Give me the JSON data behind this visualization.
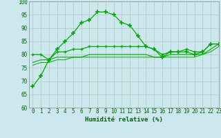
{
  "xlabel": "Humidité relative (%)",
  "background_color": "#cce8ee",
  "grid_color": "#aaccbb",
  "line_color": "#00aa00",
  "x_values": [
    0,
    1,
    2,
    3,
    4,
    5,
    6,
    7,
    8,
    9,
    10,
    11,
    12,
    13,
    14,
    15,
    16,
    17,
    18,
    19,
    20,
    21,
    22,
    23
  ],
  "series1": [
    68,
    72,
    78,
    82,
    85,
    88,
    92,
    93,
    96,
    96,
    95,
    92,
    91,
    87,
    83,
    82,
    79,
    81,
    81,
    81,
    80,
    81,
    84,
    84
  ],
  "series2": [
    80,
    80,
    78,
    81,
    81,
    82,
    82,
    83,
    83,
    83,
    83,
    83,
    83,
    83,
    83,
    82,
    80,
    81,
    81,
    82,
    81,
    81,
    84,
    84
  ],
  "series3": [
    77,
    78,
    78,
    79,
    79,
    79,
    79,
    80,
    80,
    80,
    80,
    80,
    80,
    80,
    80,
    79,
    79,
    80,
    80,
    80,
    80,
    80,
    82,
    84
  ],
  "series4": [
    76,
    77,
    77,
    78,
    78,
    79,
    79,
    79,
    79,
    79,
    79,
    79,
    79,
    79,
    79,
    79,
    79,
    79,
    79,
    79,
    79,
    80,
    81,
    83
  ],
  "ylim": [
    60,
    100
  ],
  "xlim": [
    -0.5,
    23
  ],
  "yticks": [
    60,
    65,
    70,
    75,
    80,
    85,
    90,
    95,
    100
  ],
  "xticks": [
    0,
    1,
    2,
    3,
    4,
    5,
    6,
    7,
    8,
    9,
    10,
    11,
    12,
    13,
    14,
    15,
    16,
    17,
    18,
    19,
    20,
    21,
    22,
    23
  ],
  "tick_fontsize": 5.5,
  "xlabel_fontsize": 6.5
}
